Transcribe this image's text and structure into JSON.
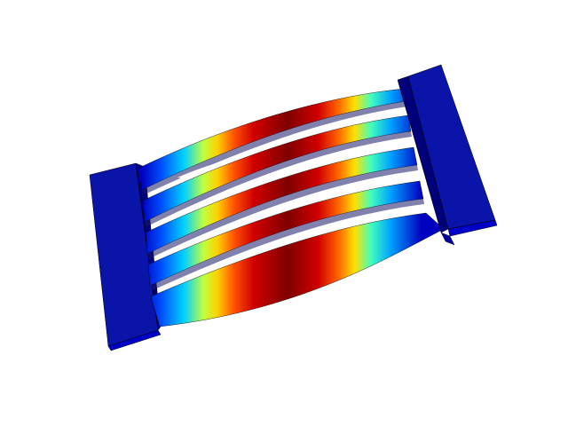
{
  "view": {
    "background": "#ffffff",
    "plot_type": "3D surface plot, colored by magnitude",
    "colormap": [
      "#00008f",
      "#0000ff",
      "#0080ff",
      "#00ffff",
      "#80ff80",
      "#ffff00",
      "#ff8000",
      "#ff0000",
      "#800000"
    ],
    "edge_color": "#000000",
    "left_block_colors": [
      "#0a14a8",
      "#0000c8",
      "#00007a"
    ],
    "right_block_colors": [
      "#0a14a8",
      "#0000c8",
      "#00007a"
    ],
    "beam_count": 5
  }
}
